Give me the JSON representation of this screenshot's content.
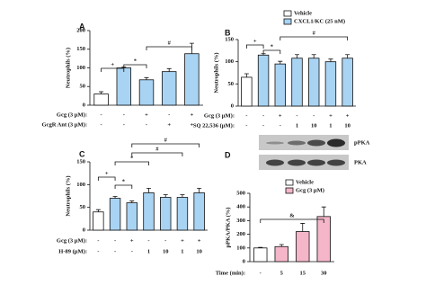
{
  "chart_data": [
    {
      "type": "bar",
      "panel": "A",
      "ylabel": "Neutrophils (%)",
      "ylim": [
        0,
        200
      ],
      "yticks": [
        0,
        50,
        100,
        150,
        200
      ],
      "values": [
        30,
        100,
        68,
        90,
        138
      ],
      "errors": [
        6,
        2,
        6,
        8,
        28
      ],
      "colors": [
        "#ffffff",
        "#a9d3f2",
        "#a9d3f2",
        "#a9d3f2",
        "#a9d3f2"
      ],
      "rows": [
        {
          "label": "Gcg (3 µM):",
          "marks": [
            "-",
            "-",
            "+",
            "-",
            "+"
          ]
        },
        {
          "label": "GcgR Ant (3 µM):",
          "marks": [
            "-",
            "-",
            "-",
            "+",
            "+"
          ]
        }
      ],
      "annotations": [
        "+",
        "*",
        "#"
      ],
      "legend": [
        {
          "name": "Vehicle",
          "color": "#ffffff"
        },
        {
          "name": "CXCL1/KC (25 nM)",
          "color": "#a9d3f2"
        }
      ]
    },
    {
      "type": "bar",
      "panel": "B",
      "ylabel": "Neutrophils (%)",
      "ylim": [
        0,
        150
      ],
      "yticks": [
        0,
        50,
        100,
        150
      ],
      "values": [
        65,
        115,
        95,
        108,
        108,
        100,
        108
      ],
      "errors": [
        8,
        3,
        6,
        8,
        8,
        6,
        8
      ],
      "colors": [
        "#ffffff",
        "#a9d3f2",
        "#a9d3f2",
        "#a9d3f2",
        "#a9d3f2",
        "#a9d3f2",
        "#a9d3f2"
      ],
      "rows": [
        {
          "label": "Gcg (3 µM):",
          "marks": [
            "-",
            "-",
            "+",
            "-",
            "-",
            "+",
            "+"
          ]
        },
        {
          "label": "SQ 22,536 (µM):",
          "marks": [
            "-",
            "-",
            "-",
            "1",
            "10",
            "1",
            "10"
          ]
        }
      ],
      "annotations": [
        "+",
        "*",
        "#"
      ]
    },
    {
      "type": "bar",
      "panel": "C",
      "ylabel": "Neutrophils (%)",
      "ylim": [
        0,
        150
      ],
      "yticks": [
        0,
        50,
        100,
        150
      ],
      "values": [
        40,
        70,
        60,
        82,
        72,
        72,
        82
      ],
      "errors": [
        5,
        4,
        4,
        10,
        6,
        6,
        10
      ],
      "colors": [
        "#ffffff",
        "#a9d3f2",
        "#a9d3f2",
        "#a9d3f2",
        "#a9d3f2",
        "#a9d3f2",
        "#a9d3f2"
      ],
      "rows": [
        {
          "label": "Gcg (3 µM):",
          "marks": [
            "-",
            "-",
            "+",
            "-",
            "-",
            "+",
            "+"
          ]
        },
        {
          "label": "H-89 (µM):",
          "marks": [
            "-",
            "-",
            "-",
            "1",
            "10",
            "1",
            "10"
          ]
        }
      ],
      "annotations": [
        "+",
        "*",
        "*",
        "#",
        "#"
      ]
    },
    {
      "type": "bar",
      "panel": "D",
      "ylabel": "pPKA/PKA (%)",
      "ylim": [
        0,
        500
      ],
      "yticks": [
        0,
        100,
        200,
        300,
        400,
        500
      ],
      "values": [
        100,
        110,
        220,
        330
      ],
      "errors": [
        4,
        15,
        60,
        70
      ],
      "colors": [
        "#ffffff",
        "#f4b6c8",
        "#f4b6c8",
        "#f4b6c8"
      ],
      "rows": [
        {
          "label": "Time (min):",
          "marks": [
            "-",
            "5",
            "15",
            "30"
          ]
        }
      ],
      "annotations": [
        "&"
      ],
      "blot_labels": [
        "pPKA",
        "PKA"
      ],
      "legend": [
        {
          "name": "Vehicle",
          "color": "#ffffff"
        },
        {
          "name": "Gcg (3 µM)",
          "color": "#f4b6c8"
        }
      ]
    }
  ]
}
